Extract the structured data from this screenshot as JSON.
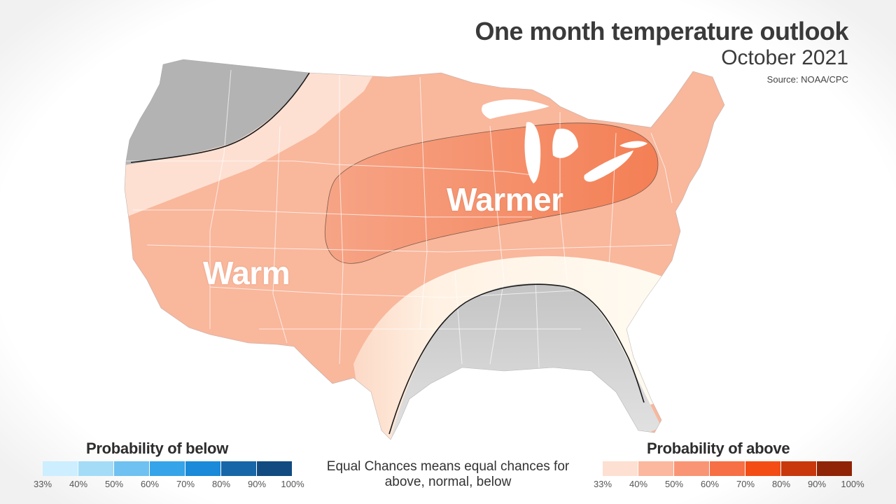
{
  "title": "One month temperature outlook",
  "subtitle": "October 2021",
  "source": "Source: NOAA/CPC",
  "map": {
    "regions": [
      {
        "label": "Warmer",
        "category": "above",
        "probability_range": "50%-60%"
      },
      {
        "label": "Warm",
        "category": "above",
        "probability_range": "40%-50%"
      }
    ],
    "below_normal_regions": [
      "Pacific Northwest",
      "Southeast"
    ],
    "equal_chances_region": "Southern Plains / Texas"
  },
  "legend_below": {
    "title": "Probability of below",
    "ticks": [
      "33%",
      "40%",
      "50%",
      "60%",
      "70%",
      "80%",
      "90%",
      "100%"
    ],
    "colors": [
      "#cdeefe",
      "#a4dcf8",
      "#6ec1f0",
      "#36a4e8",
      "#1a8ad9",
      "#1766a8",
      "#114b80"
    ]
  },
  "legend_above": {
    "title": "Probability of above",
    "ticks": [
      "33%",
      "40%",
      "50%",
      "60%",
      "70%",
      "80%",
      "90%",
      "100%"
    ],
    "colors": [
      "#fde0d2",
      "#fbb89e",
      "#f99574",
      "#f76f44",
      "#f34d15",
      "#c8380c",
      "#8f2406"
    ]
  },
  "equal_chances_note": "Equal Chances means equal chances for above, normal, below",
  "colors": {
    "below_gray": "#b5b5b5",
    "equal_chances": "#fffaf0",
    "warm": "#f9b79c",
    "warmer": "#f7946f",
    "title_text": "#3a3a3a"
  }
}
